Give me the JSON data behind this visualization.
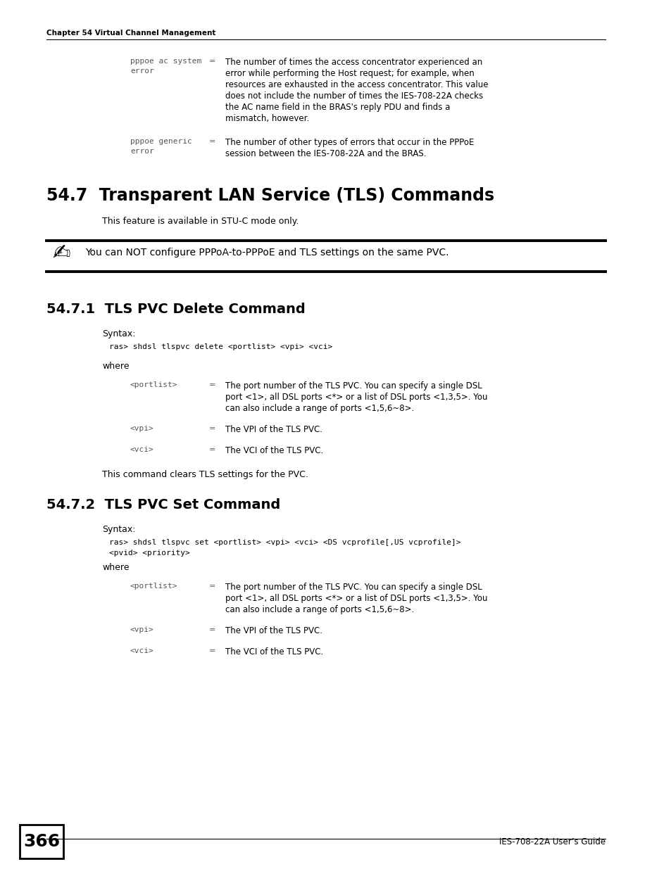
{
  "bg_color": "#ffffff",
  "header_text": "Chapter 54 Virtual Channel Management",
  "footer_page": "366",
  "footer_right": "IES-708-22A User’s Guide",
  "section_title": "54.7  Transparent LAN Service (TLS) Commands",
  "section_intro": "This feature is available in STU-C mode only.",
  "note_text": "You can NOT configure PPPoA-to-PPPoE and TLS settings on the same PVC.",
  "sub1_title": "54.7.1  TLS PVC Delete Command",
  "sub1_syntax_label": "Syntax:",
  "sub1_syntax_code": "  ras> shdsl tlspvc delete <portlist> <vpi> <vci>",
  "sub1_where": "where",
  "sub1_params": [
    {
      "name": "<portlist>",
      "desc": "The port number of the TLS PVC. You can specify a single DSL\nport <1>, all DSL ports <*> or a list of DSL ports <1,3,5>. You\ncan also include a range of ports <1,5,6~8>."
    },
    {
      "name": "<vpi>",
      "desc": "The VPI of the TLS PVC."
    },
    {
      "name": "<vci>",
      "desc": "The VCI of the TLS PVC."
    }
  ],
  "sub1_closing": "This command clears TLS settings for the PVC.",
  "sub2_title": "54.7.2  TLS PVC Set Command",
  "sub2_syntax_label": "Syntax:",
  "sub2_syntax_code_line1": "  ras> shdsl tlspvc set <portlist> <vpi> <vci> <DS vcprofile[,US vcprofile]>",
  "sub2_syntax_code_line2": "<pvid> <priority>",
  "sub2_where": "where",
  "sub2_params": [
    {
      "name": "<portlist>",
      "desc": "The port number of the TLS PVC. You can specify a single DSL\nport <1>, all DSL ports <*> or a list of DSL ports <1,3,5>. You\ncan also include a range of ports <1,5,6~8>."
    },
    {
      "name": "<vpi>",
      "desc": "The VPI of the TLS PVC."
    },
    {
      "name": "<vci>",
      "desc": "The VCI of the TLS PVC."
    }
  ],
  "top_params": [
    {
      "name_line1": "pppoe ac system",
      "name_line2": "error",
      "desc": "The number of times the access concentrator experienced an\nerror while performing the Host request; for example, when\nresources are exhausted in the access concentrator. This value\ndoes not include the number of times the IES-708-22A checks\nthe AC name field in the BRAS's reply PDU and finds a\nmismatch, however."
    },
    {
      "name_line1": "pppoe generic",
      "name_line2": "error",
      "desc": "The number of other types of errors that occur in the PPPoE\nsession between the IES-708-22A and the BRAS."
    }
  ]
}
